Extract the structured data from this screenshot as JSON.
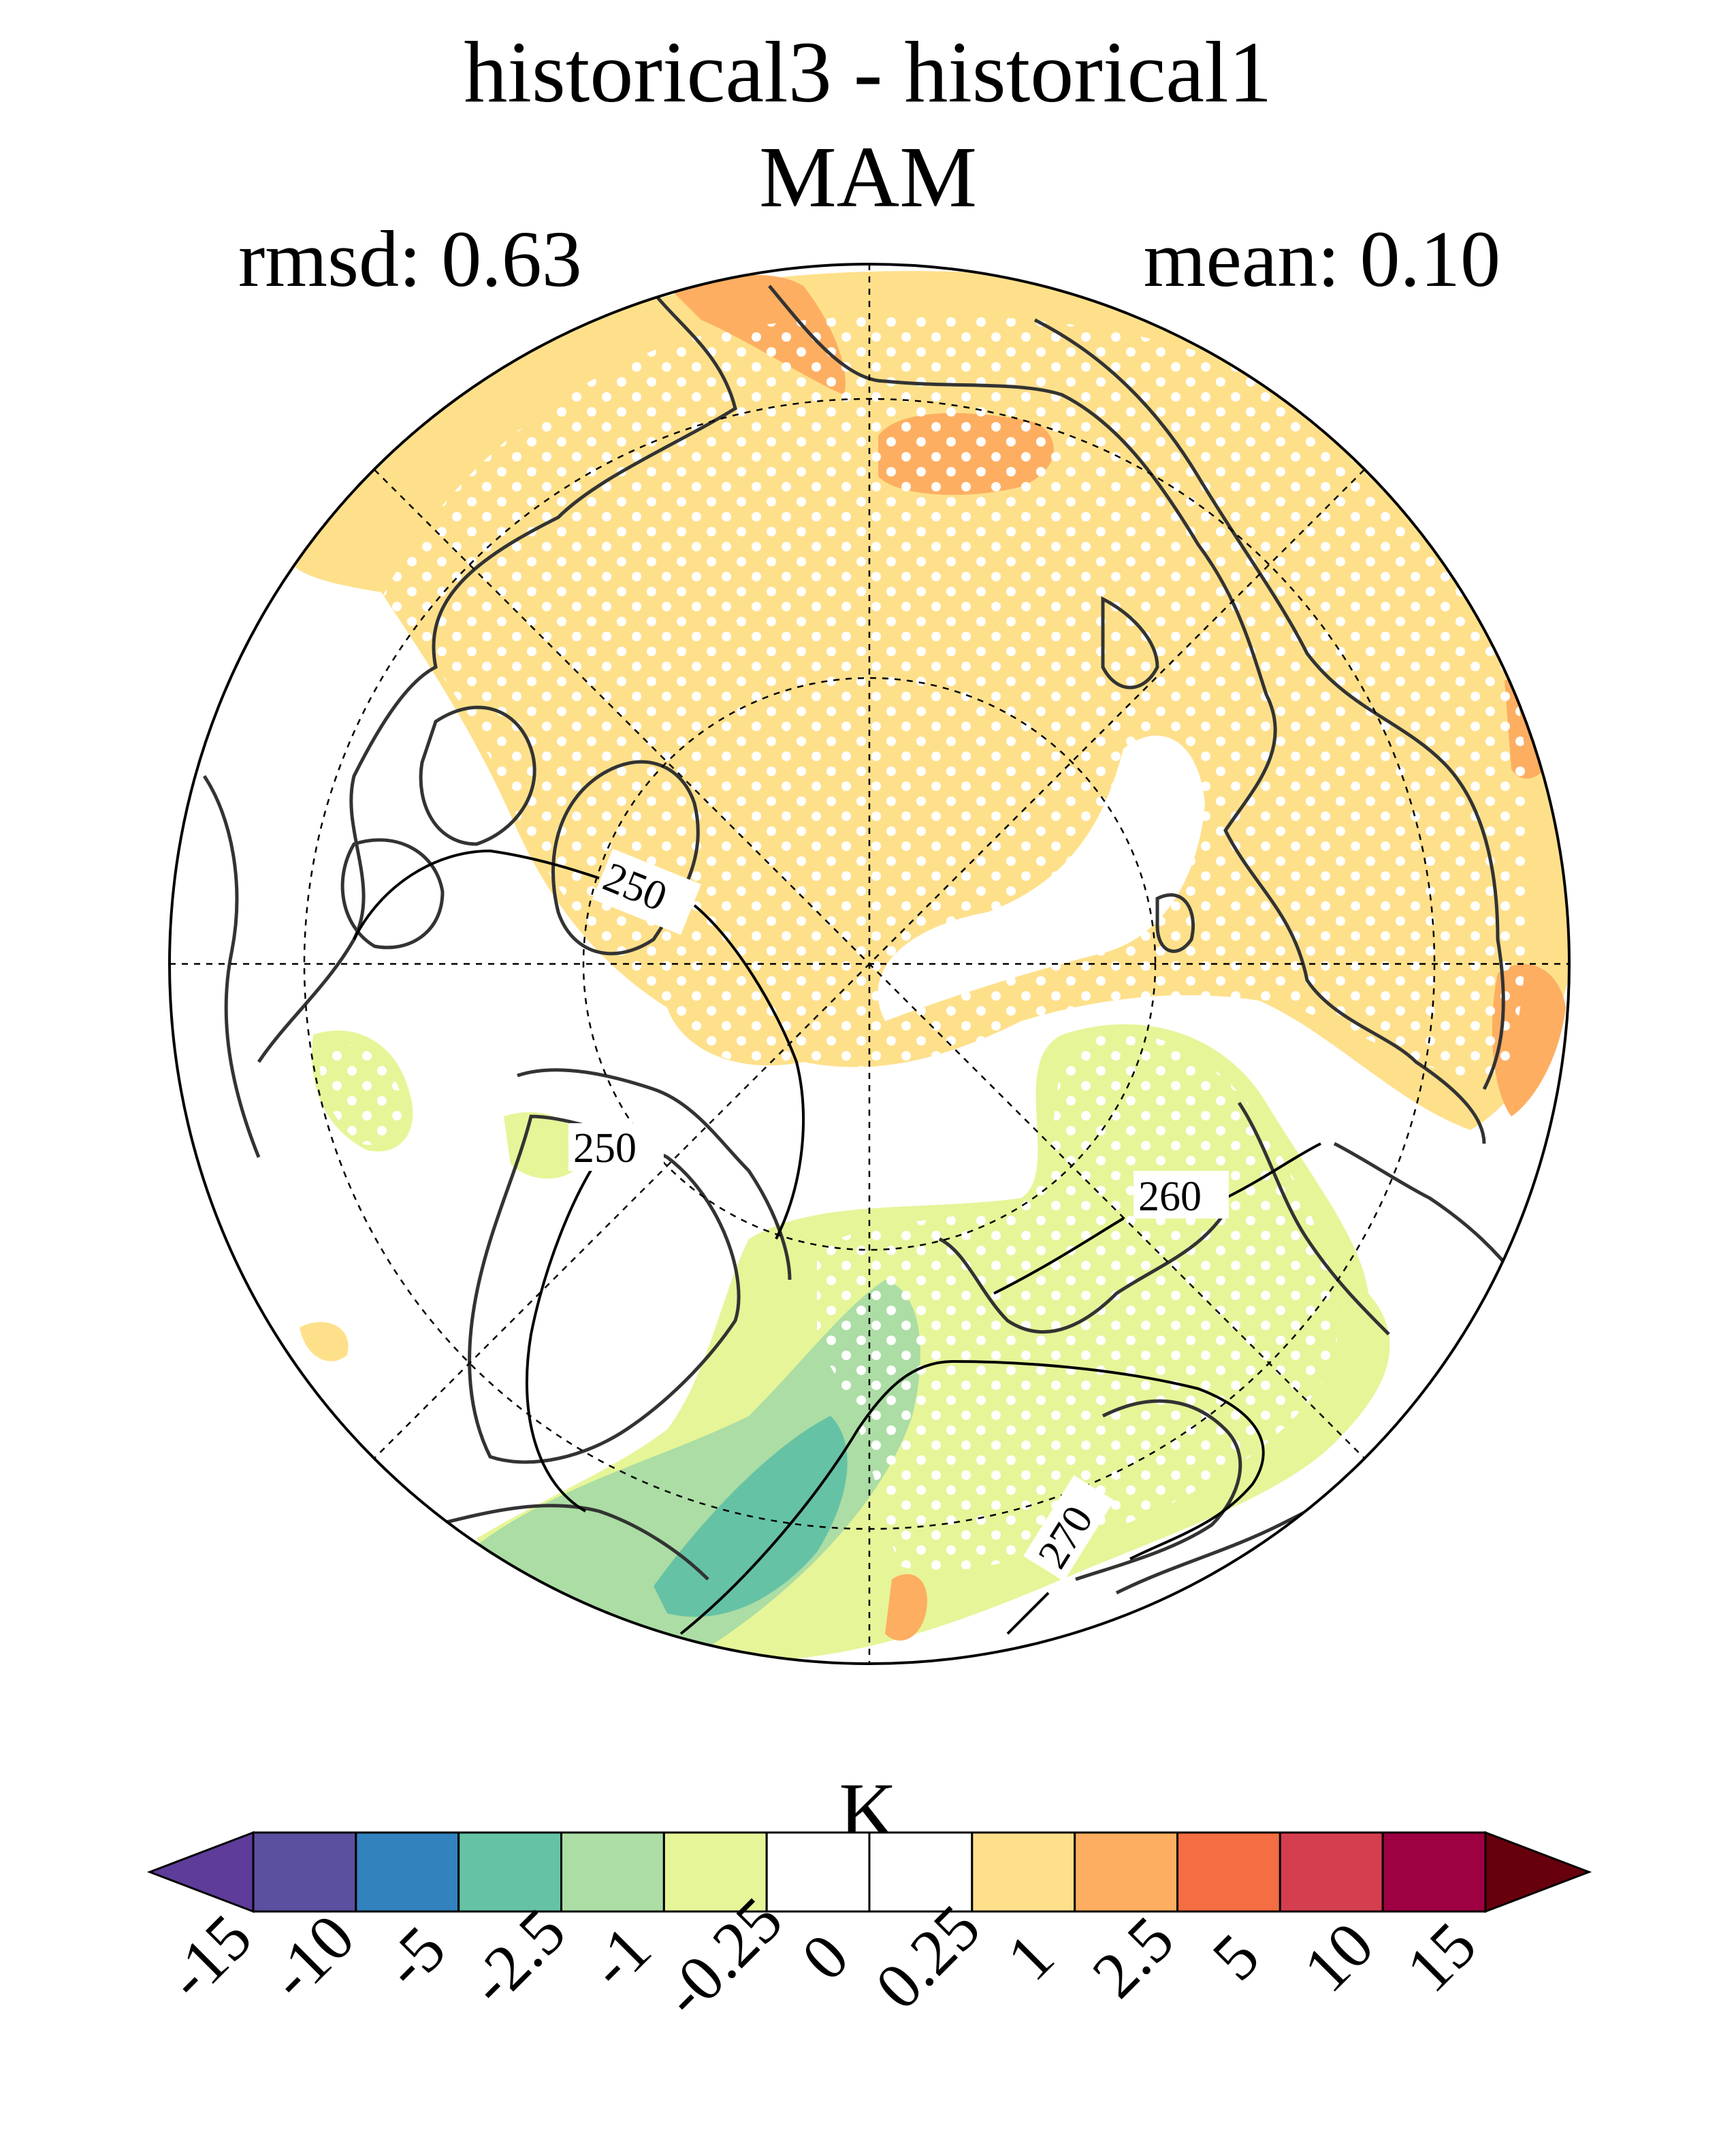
{
  "title": "historical3 - historical1",
  "subtitle": "MAM",
  "stats": {
    "rmsd": "rmsd: 0.63",
    "mean": "mean: 0.10"
  },
  "map": {
    "projection": "north-polar-stereographic",
    "field": "difference",
    "stippling": "white dots",
    "contours": [
      {
        "label": "250"
      },
      {
        "label": "250"
      },
      {
        "label": "260"
      },
      {
        "label": "270"
      }
    ]
  },
  "colorbar": {
    "units": "K",
    "tick_labels": [
      "-15",
      "-10",
      "-5",
      "-2.5",
      "-1",
      "-0.25",
      "0",
      "0.25",
      "1",
      "2.5",
      "5",
      "10",
      "15"
    ],
    "colors": [
      "#5e3c99",
      "#5b4fa0",
      "#3182bd",
      "#66c2a5",
      "#abdda4",
      "#e6f598",
      "#ffffff",
      "#ffffff",
      "#fee08b",
      "#fdae61",
      "#f46d43",
      "#d53e4f",
      "#9e0142",
      "#67000d"
    ]
  }
}
